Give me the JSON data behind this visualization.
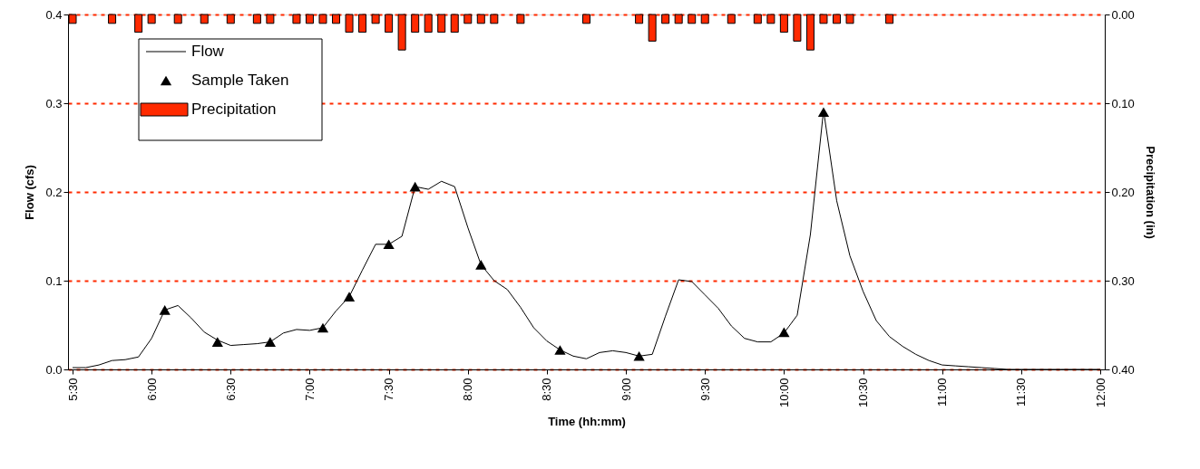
{
  "chart_data": {
    "type": "line",
    "xlabel": "Time (hh:mm)",
    "ylabel": "Flow (cfs)",
    "y2label": "Precipitation (in)",
    "legend": "top left",
    "grid": "y",
    "xlim": [
      5.5,
      12
    ],
    "xticks": [
      {
        "value": 5.5,
        "label": "5:30"
      },
      {
        "value": 6,
        "label": "6:00"
      },
      {
        "value": 6.5,
        "label": "6:30"
      },
      {
        "value": 7,
        "label": "7:00"
      },
      {
        "value": 7.5,
        "label": "7:30"
      },
      {
        "value": 8,
        "label": "8:00"
      },
      {
        "value": 8.5,
        "label": "8:30"
      },
      {
        "value": 9,
        "label": "9:00"
      },
      {
        "value": 9.5,
        "label": "9:30"
      },
      {
        "value": 10,
        "label": "10:00"
      },
      {
        "value": 10.5,
        "label": "10:30"
      },
      {
        "value": 11,
        "label": "11:00"
      },
      {
        "value": 11.5,
        "label": "11:30"
      },
      {
        "value": 12,
        "label": "12:00"
      }
    ],
    "ylim": [
      0,
      0.4
    ],
    "yticks": [
      {
        "value": 0,
        "label": "0.0"
      },
      {
        "value": 0.1,
        "label": "0.1"
      },
      {
        "value": 0.2,
        "label": "0.2"
      },
      {
        "value": 0.3,
        "label": "0.3"
      },
      {
        "value": 0.4,
        "label": "0.4"
      }
    ],
    "y2lim": [
      0.4,
      0
    ],
    "y2ticks": [
      {
        "value": 0,
        "label": "0.00"
      },
      {
        "value": 0.1,
        "label": "0.10"
      },
      {
        "value": 0.2,
        "label": "0.20"
      },
      {
        "value": 0.3,
        "label": "0.30"
      },
      {
        "value": 0.4,
        "label": "0.40"
      }
    ],
    "series": [
      {
        "name": "Flow",
        "color": "#000000",
        "marker": "none",
        "line_style": "solid",
        "x": [
          5.5,
          5.5833,
          5.6667,
          5.75,
          5.8333,
          5.9167,
          6.0,
          6.0833,
          6.1667,
          6.25,
          6.3333,
          6.4167,
          6.5,
          6.5833,
          6.6667,
          6.75,
          6.8333,
          6.9167,
          7.0,
          7.0833,
          7.1667,
          7.25,
          7.3333,
          7.4167,
          7.5,
          7.5833,
          7.6667,
          7.75,
          7.8333,
          7.9167,
          8.0,
          8.0833,
          8.1667,
          8.25,
          8.3333,
          8.4167,
          8.5,
          8.5833,
          8.6667,
          8.75,
          8.8333,
          8.9167,
          9.0,
          9.0833,
          9.1667,
          9.25,
          9.3333,
          9.4167,
          9.5,
          9.5833,
          9.6667,
          9.75,
          9.8333,
          9.9167,
          10.0,
          10.0833,
          10.1667,
          10.25,
          10.3333,
          10.4167,
          10.5,
          10.5833,
          10.6667,
          10.75,
          10.8333,
          10.9167,
          11.0,
          11.0833,
          11.1667,
          11.25,
          11.3333,
          11.4167,
          11.5,
          11.5833,
          11.6667,
          11.75,
          11.8333,
          11.9167,
          12.0
        ],
        "values": [
          0.002,
          0.002,
          0.005,
          0.01,
          0.011,
          0.014,
          0.035,
          0.067,
          0.072,
          0.058,
          0.042,
          0.033,
          0.027,
          0.028,
          0.029,
          0.031,
          0.041,
          0.045,
          0.044,
          0.047,
          0.066,
          0.082,
          0.112,
          0.141,
          0.141,
          0.15,
          0.206,
          0.203,
          0.212,
          0.206,
          0.16,
          0.118,
          0.1,
          0.09,
          0.07,
          0.047,
          0.032,
          0.022,
          0.015,
          0.012,
          0.019,
          0.021,
          0.019,
          0.015,
          0.017,
          0.06,
          0.101,
          0.099,
          0.084,
          0.069,
          0.049,
          0.035,
          0.031,
          0.031,
          0.041,
          0.061,
          0.152,
          0.292,
          0.19,
          0.128,
          0.088,
          0.055,
          0.037,
          0.026,
          0.017,
          0.01,
          0.005,
          0.004,
          0.003,
          0.002,
          0.001,
          0,
          0,
          0,
          0,
          0,
          0,
          0,
          0
        ]
      },
      {
        "name": "Sample Taken",
        "type": "scatter",
        "color": "#000000",
        "marker": "triangle",
        "x": [
          6.0833,
          6.4167,
          6.75,
          7.0833,
          7.25,
          7.5,
          7.6667,
          8.0833,
          8.5833,
          9.0833,
          10.0,
          10.25
        ],
        "values": [
          0.067,
          0.031,
          0.031,
          0.047,
          0.082,
          0.141,
          0.206,
          0.118,
          0.022,
          0.015,
          0.042,
          0.29
        ]
      },
      {
        "name": "Precipitation",
        "type": "bar",
        "axis": "y2",
        "color": "#ff2a00",
        "x": [
          5.5,
          5.75,
          5.9167,
          6.0,
          6.1667,
          6.3333,
          6.5,
          6.6667,
          6.75,
          6.9167,
          7.0,
          7.0833,
          7.1667,
          7.25,
          7.3333,
          7.4167,
          7.5,
          7.5833,
          7.6667,
          7.75,
          7.8333,
          7.9167,
          8.0,
          8.0833,
          8.1667,
          8.3333,
          8.75,
          9.0833,
          9.1667,
          9.25,
          9.3333,
          9.4167,
          9.5,
          9.6667,
          9.8333,
          9.9167,
          10.0,
          10.0833,
          10.1667,
          10.25,
          10.3333,
          10.4167,
          10.6667
        ],
        "values": [
          0.01,
          0.01,
          0.02,
          0.01,
          0.01,
          0.01,
          0.01,
          0.01,
          0.01,
          0.01,
          0.01,
          0.01,
          0.01,
          0.02,
          0.02,
          0.01,
          0.02,
          0.04,
          0.02,
          0.02,
          0.02,
          0.02,
          0.01,
          0.01,
          0.01,
          0.01,
          0.01,
          0.01,
          0.03,
          0.01,
          0.01,
          0.01,
          0.01,
          0.01,
          0.01,
          0.01,
          0.02,
          0.03,
          0.04,
          0.01,
          0.01,
          0.01,
          0.01
        ]
      }
    ]
  }
}
